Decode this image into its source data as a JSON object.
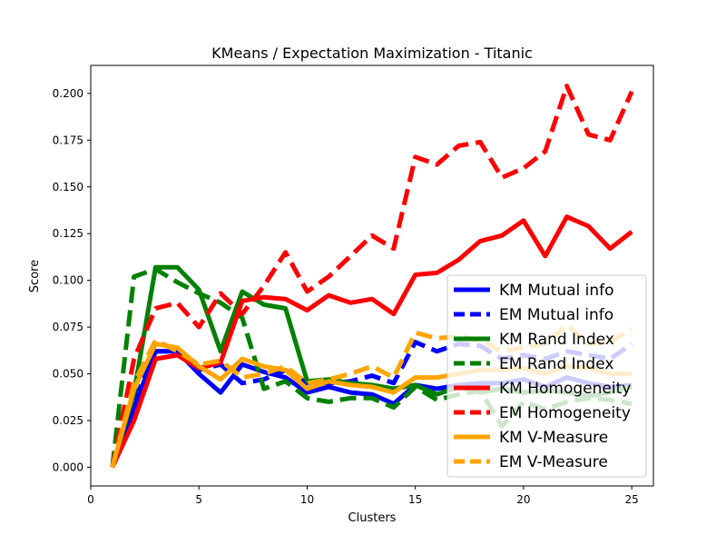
{
  "chart_data": {
    "type": "line",
    "title": "KMeans / Expectation Maximization - Titanic",
    "xlabel": "Clusters",
    "ylabel": "Score",
    "xlim": [
      0,
      26
    ],
    "ylim": [
      -0.01,
      0.215
    ],
    "xticks": [
      0,
      5,
      10,
      15,
      20,
      25
    ],
    "yticks": [
      0.0,
      0.025,
      0.05,
      0.075,
      0.1,
      0.125,
      0.15,
      0.175,
      0.2
    ],
    "ytick_labels": [
      "0.000",
      "0.025",
      "0.050",
      "0.075",
      "0.100",
      "0.125",
      "0.150",
      "0.175",
      "0.200"
    ],
    "grid": false,
    "legend_position": "lower right",
    "x": [
      1,
      2,
      3,
      4,
      5,
      6,
      7,
      8,
      9,
      10,
      11,
      12,
      13,
      14,
      15,
      16,
      17,
      18,
      19,
      20,
      21,
      22,
      23,
      24,
      25
    ],
    "series": [
      {
        "name": "KM Mutual info",
        "color": "#0000ff",
        "style": "solid",
        "values": [
          0.0,
          0.032,
          0.062,
          0.062,
          0.05,
          0.04,
          0.055,
          0.051,
          0.048,
          0.04,
          0.043,
          0.04,
          0.039,
          0.034,
          0.044,
          0.042,
          0.044,
          0.045,
          0.045,
          0.047,
          0.043,
          0.048,
          0.045,
          0.043,
          0.044
        ]
      },
      {
        "name": "EM Mutual info",
        "color": "#0000ff",
        "style": "dashed",
        "values": [
          0.0,
          0.035,
          0.062,
          0.062,
          0.052,
          0.055,
          0.045,
          0.047,
          0.052,
          0.045,
          0.045,
          0.046,
          0.049,
          0.045,
          0.067,
          0.062,
          0.066,
          0.065,
          0.058,
          0.06,
          0.058,
          0.062,
          0.06,
          0.058,
          0.066
        ]
      },
      {
        "name": "KM Rand Index",
        "color": "#008000",
        "style": "solid",
        "values": [
          0.0,
          0.04,
          0.107,
          0.107,
          0.095,
          0.062,
          0.094,
          0.087,
          0.085,
          0.046,
          0.047,
          0.045,
          0.044,
          0.042,
          0.044,
          0.039,
          0.043,
          0.04,
          0.042,
          0.04,
          0.041,
          0.04,
          0.038,
          0.04,
          0.043
        ]
      },
      {
        "name": "EM Rand Index",
        "color": "#008000",
        "style": "dashed",
        "values": [
          0.0,
          0.102,
          0.106,
          0.099,
          0.093,
          0.088,
          0.08,
          0.042,
          0.046,
          0.037,
          0.035,
          0.037,
          0.037,
          0.032,
          0.043,
          0.036,
          0.039,
          0.041,
          0.022,
          0.035,
          0.031,
          0.035,
          0.037,
          0.036,
          0.034
        ]
      },
      {
        "name": "KM Homogeneity",
        "color": "#ff0000",
        "style": "solid",
        "values": [
          0.0,
          0.025,
          0.058,
          0.06,
          0.053,
          0.056,
          0.089,
          0.091,
          0.09,
          0.084,
          0.092,
          0.088,
          0.09,
          0.082,
          0.103,
          0.104,
          0.111,
          0.121,
          0.124,
          0.132,
          0.113,
          0.134,
          0.129,
          0.117,
          0.126
        ]
      },
      {
        "name": "EM Homogeneity",
        "color": "#ff0000",
        "style": "dashed",
        "values": [
          0.0,
          0.058,
          0.085,
          0.088,
          0.075,
          0.093,
          0.082,
          0.097,
          0.115,
          0.094,
          0.102,
          0.113,
          0.124,
          0.117,
          0.166,
          0.162,
          0.172,
          0.174,
          0.155,
          0.16,
          0.169,
          0.204,
          0.178,
          0.175,
          0.201
        ]
      },
      {
        "name": "KM V-Measure",
        "color": "#ffa500",
        "style": "solid",
        "values": [
          0.0,
          0.042,
          0.066,
          0.064,
          0.054,
          0.047,
          0.058,
          0.054,
          0.052,
          0.042,
          0.046,
          0.044,
          0.043,
          0.04,
          0.048,
          0.048,
          0.05,
          0.052,
          0.052,
          0.053,
          0.05,
          0.054,
          0.053,
          0.05,
          0.05
        ]
      },
      {
        "name": "EM V-Measure",
        "color": "#ffa500",
        "style": "dashed",
        "values": [
          0.0,
          0.045,
          0.068,
          0.062,
          0.055,
          0.057,
          0.048,
          0.05,
          0.054,
          0.045,
          0.047,
          0.05,
          0.054,
          0.048,
          0.072,
          0.069,
          0.07,
          0.068,
          0.062,
          0.064,
          0.066,
          0.076,
          0.066,
          0.067,
          0.074
        ]
      }
    ]
  }
}
